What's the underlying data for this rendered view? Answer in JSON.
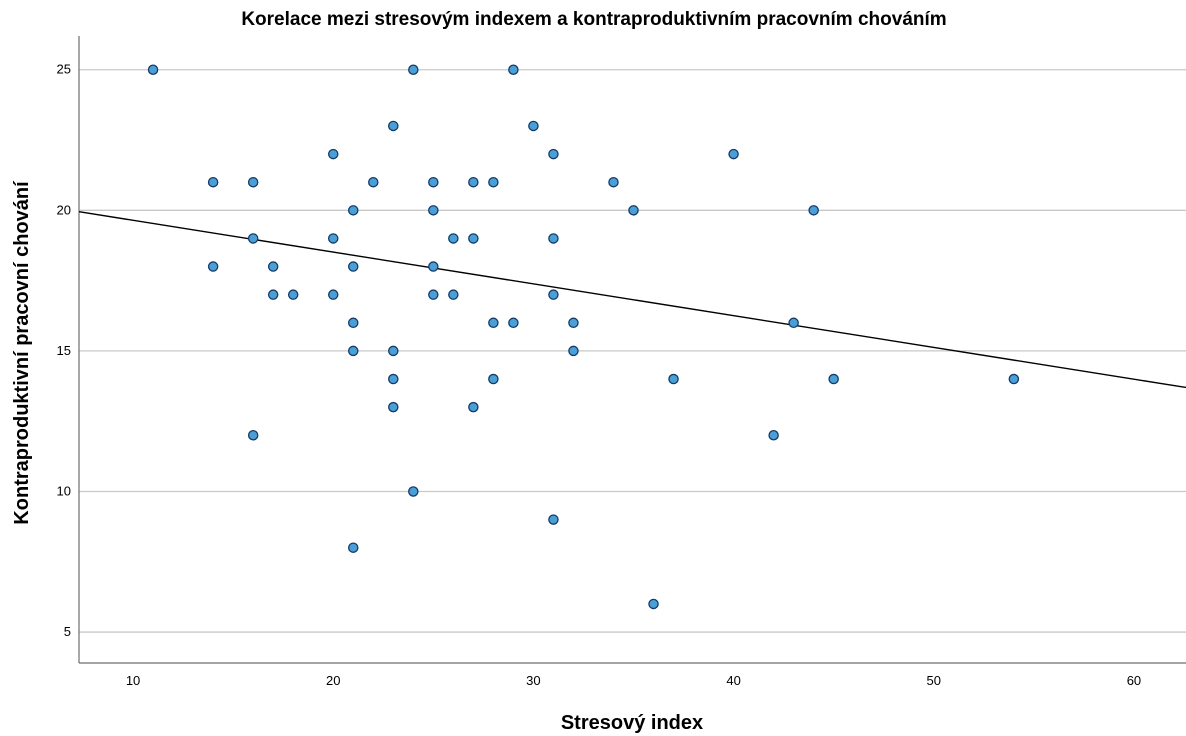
{
  "chart_data": {
    "type": "scatter",
    "title": "Korelace mezi stresovým indexem a kontraproduktivním pracovním chováním",
    "xlabel": "Stresový index",
    "ylabel": "Kontraproduktivní pracovní chování",
    "xlim": [
      7.3,
      62.6
    ],
    "ylim": [
      3.9,
      26.2
    ],
    "x_ticks": [
      10,
      20,
      30,
      40,
      50,
      60
    ],
    "y_ticks": [
      5,
      10,
      15,
      20,
      25
    ],
    "grid": "horizontal",
    "point_color": "#4a9fd6",
    "point_edge_color": "#143a66",
    "fit_line": {
      "x": [
        7.3,
        62.6
      ],
      "y": [
        19.95,
        13.7
      ]
    },
    "points": [
      {
        "x": 11,
        "y": 25
      },
      {
        "x": 24,
        "y": 25
      },
      {
        "x": 29,
        "y": 25
      },
      {
        "x": 23,
        "y": 23
      },
      {
        "x": 30,
        "y": 23
      },
      {
        "x": 20,
        "y": 22
      },
      {
        "x": 31,
        "y": 22
      },
      {
        "x": 40,
        "y": 22
      },
      {
        "x": 14,
        "y": 21
      },
      {
        "x": 16,
        "y": 21
      },
      {
        "x": 22,
        "y": 21
      },
      {
        "x": 25,
        "y": 21
      },
      {
        "x": 27,
        "y": 21
      },
      {
        "x": 28,
        "y": 21
      },
      {
        "x": 34,
        "y": 21
      },
      {
        "x": 21,
        "y": 20
      },
      {
        "x": 25,
        "y": 20
      },
      {
        "x": 35,
        "y": 20
      },
      {
        "x": 44,
        "y": 20
      },
      {
        "x": 16,
        "y": 19
      },
      {
        "x": 20,
        "y": 19
      },
      {
        "x": 26,
        "y": 19
      },
      {
        "x": 27,
        "y": 19
      },
      {
        "x": 31,
        "y": 19
      },
      {
        "x": 14,
        "y": 18
      },
      {
        "x": 17,
        "y": 18
      },
      {
        "x": 21,
        "y": 18
      },
      {
        "x": 25,
        "y": 18
      },
      {
        "x": 17,
        "y": 17
      },
      {
        "x": 18,
        "y": 17
      },
      {
        "x": 20,
        "y": 17
      },
      {
        "x": 25,
        "y": 17
      },
      {
        "x": 26,
        "y": 17
      },
      {
        "x": 31,
        "y": 17
      },
      {
        "x": 21,
        "y": 16
      },
      {
        "x": 28,
        "y": 16
      },
      {
        "x": 29,
        "y": 16
      },
      {
        "x": 32,
        "y": 16
      },
      {
        "x": 43,
        "y": 16
      },
      {
        "x": 21,
        "y": 15
      },
      {
        "x": 23,
        "y": 15
      },
      {
        "x": 32,
        "y": 15
      },
      {
        "x": 23,
        "y": 14
      },
      {
        "x": 28,
        "y": 14
      },
      {
        "x": 37,
        "y": 14
      },
      {
        "x": 45,
        "y": 14
      },
      {
        "x": 54,
        "y": 14
      },
      {
        "x": 23,
        "y": 13
      },
      {
        "x": 27,
        "y": 13
      },
      {
        "x": 16,
        "y": 12
      },
      {
        "x": 42,
        "y": 12
      },
      {
        "x": 24,
        "y": 10
      },
      {
        "x": 31,
        "y": 9
      },
      {
        "x": 21,
        "y": 8
      },
      {
        "x": 36,
        "y": 6
      }
    ]
  }
}
